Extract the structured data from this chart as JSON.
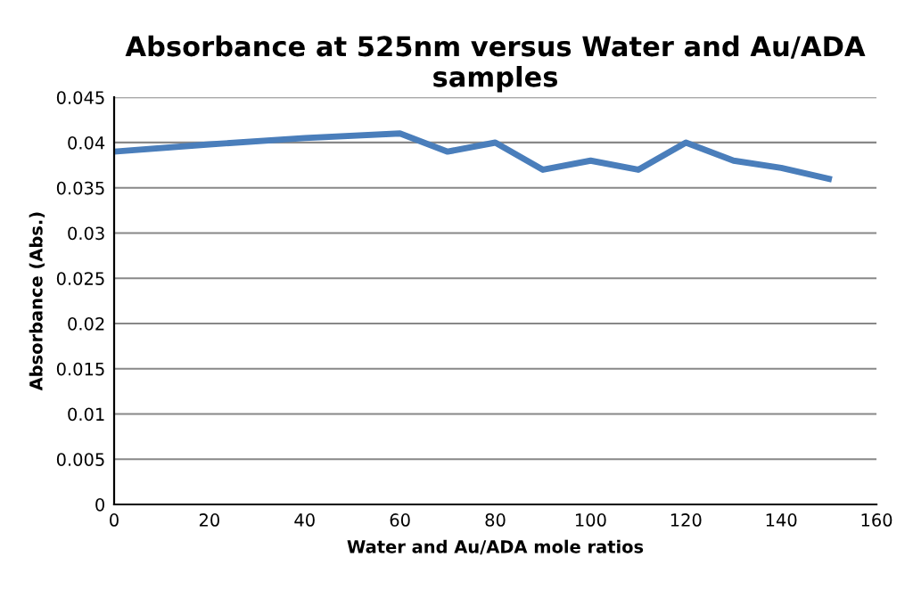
{
  "chart_data": {
    "type": "line",
    "title": "Absorbance at 525nm versus Water and Au/ADA samples",
    "xlabel": "Water and Au/ADA mole ratios",
    "ylabel": "Absorbance (Abs.)",
    "x": [
      0,
      20,
      40,
      60,
      70,
      80,
      90,
      100,
      110,
      120,
      130,
      140,
      150
    ],
    "series": [
      {
        "color": "#4a7ebb",
        "values": [
          0.039,
          0.0398,
          0.0405,
          0.041,
          0.039,
          0.04,
          0.037,
          0.038,
          0.037,
          0.04,
          0.038,
          0.0372,
          0.036
        ]
      }
    ],
    "xlim": [
      0,
      160
    ],
    "xticks": [
      0,
      20,
      40,
      60,
      80,
      100,
      120,
      140,
      160
    ],
    "ylim": [
      0,
      0.045
    ],
    "yticks": [
      0,
      0.005,
      0.01,
      0.015,
      0.02,
      0.025,
      0.03,
      0.035,
      0.04,
      0.045
    ],
    "grid": "y",
    "marker": "none",
    "line_style": "solid"
  }
}
